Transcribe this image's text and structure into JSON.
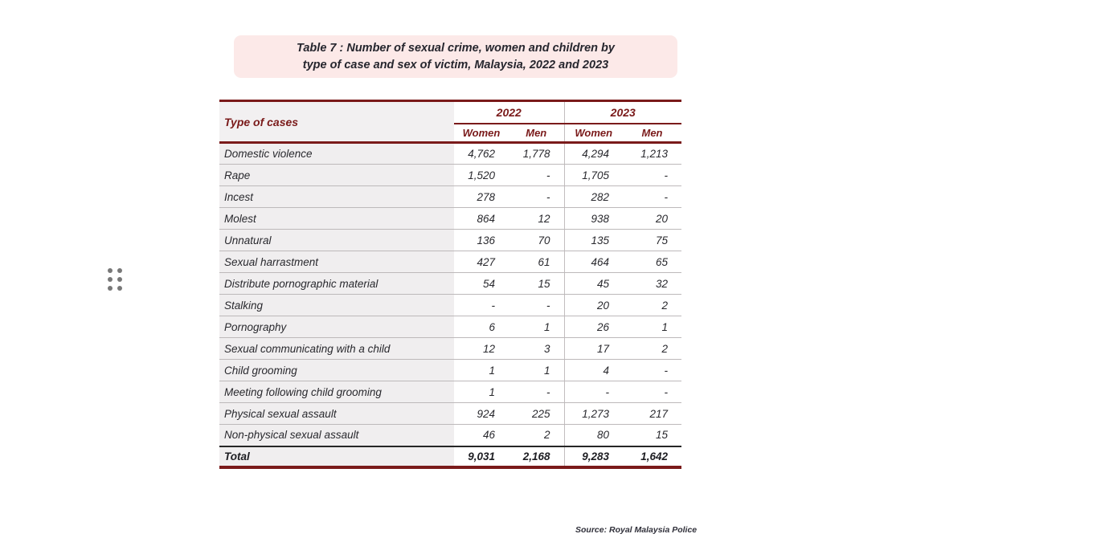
{
  "title": {
    "line1": "Table 7 : Number of  sexual crime, women and children by",
    "line2": "type of case and sex of victim, Malaysia, 2022 and 2023"
  },
  "table": {
    "corner_header": "Type of cases",
    "year_headers": [
      "2022",
      "2023"
    ],
    "sub_headers": [
      "Women",
      "Men",
      "Women",
      "Men"
    ],
    "rows": [
      {
        "label": "Domestic violence",
        "values": [
          "4,762",
          "1,778",
          "4,294",
          "1,213"
        ]
      },
      {
        "label": "Rape",
        "values": [
          "1,520",
          "-",
          "1,705",
          "-"
        ]
      },
      {
        "label": "Incest",
        "values": [
          "278",
          "-",
          "282",
          "-"
        ]
      },
      {
        "label": "Molest",
        "values": [
          "864",
          "12",
          "938",
          "20"
        ]
      },
      {
        "label": "Unnatural",
        "values": [
          "136",
          "70",
          "135",
          "75"
        ]
      },
      {
        "label": "Sexual harrastment",
        "values": [
          "427",
          "61",
          "464",
          "65"
        ]
      },
      {
        "label": "Distribute pornographic material",
        "values": [
          "54",
          "15",
          "45",
          "32"
        ]
      },
      {
        "label": "Stalking",
        "values": [
          "-",
          "-",
          "20",
          "2"
        ]
      },
      {
        "label": "Pornography",
        "values": [
          "6",
          "1",
          "26",
          "1"
        ]
      },
      {
        "label": "Sexual communicating with a child",
        "values": [
          "12",
          "3",
          "17",
          "2"
        ]
      },
      {
        "label": "Child grooming",
        "values": [
          "1",
          "1",
          "4",
          "-"
        ]
      },
      {
        "label": "Meeting following child grooming",
        "values": [
          "1",
          "-",
          "-",
          "-"
        ]
      },
      {
        "label": "Physical sexual assault",
        "values": [
          "924",
          "225",
          "1,273",
          "217"
        ]
      },
      {
        "label": "Non-physical sexual assault",
        "values": [
          "46",
          "2",
          "80",
          "15"
        ]
      }
    ],
    "total": {
      "label": "Total",
      "values": [
        "9,031",
        "2,168",
        "9,283",
        "1,642"
      ]
    }
  },
  "source": "Source: Royal Malaysia Police",
  "colors": {
    "maroon": "#7a1a1a",
    "title_bg": "#fce9e8",
    "label_column_bg": "#f0eeef",
    "row_line": "#bdb9ba",
    "body_text": "#29292e"
  }
}
